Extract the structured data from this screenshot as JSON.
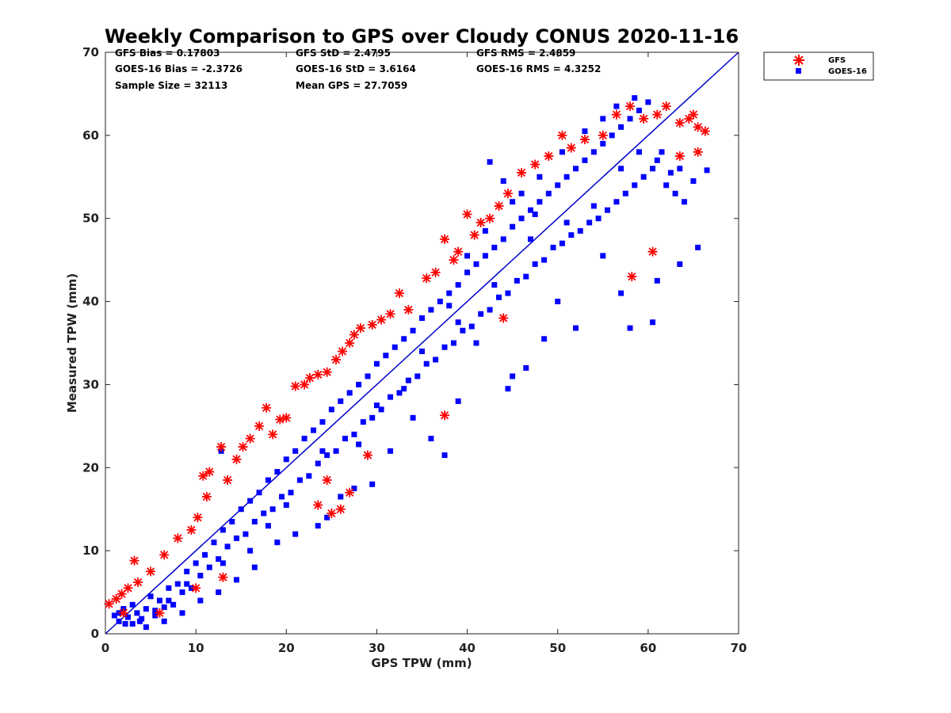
{
  "chart_data": {
    "type": "scatter",
    "title": "Weekly Comparison to GPS over Cloudy CONUS 2020-11-16",
    "xlabel": "GPS TPW (mm)",
    "ylabel": "Measured TPW (mm)",
    "xlim": [
      0,
      70
    ],
    "ylim": [
      0,
      70
    ],
    "xticks": [
      0,
      10,
      20,
      30,
      40,
      50,
      60,
      70
    ],
    "yticks": [
      0,
      10,
      20,
      30,
      40,
      50,
      60,
      70
    ],
    "grid": false,
    "legend_position": "outside-top-right",
    "reference_line": {
      "from": [
        0,
        0
      ],
      "to": [
        70,
        70
      ],
      "color": "#0000cc"
    },
    "stats": [
      [
        "GFS Bias = 0.17803",
        "GFS StD = 2.4795",
        "GFS RMS = 2.4859"
      ],
      [
        "GOES-16 Bias = -2.3726",
        "GOES-16 StD = 3.6164",
        "GOES-16 RMS = 4.3252"
      ],
      [
        "Sample Size = 32113",
        "Mean GPS = 27.7059"
      ]
    ],
    "series": [
      {
        "name": "GFS",
        "marker": "asterisk",
        "color": "#ff0000",
        "points": [
          [
            0.4,
            3.6
          ],
          [
            1.2,
            4.2
          ],
          [
            1.8,
            4.8
          ],
          [
            2.5,
            5.5
          ],
          [
            3.2,
            8.8
          ],
          [
            3.6,
            6.2
          ],
          [
            5,
            7.5
          ],
          [
            6.5,
            9.5
          ],
          [
            8,
            11.5
          ],
          [
            9.5,
            12.5
          ],
          [
            10.2,
            14
          ],
          [
            10.8,
            19
          ],
          [
            11.2,
            16.5
          ],
          [
            11.5,
            19.5
          ],
          [
            12.8,
            22.5
          ],
          [
            13.5,
            18.5
          ],
          [
            14.5,
            21
          ],
          [
            15.2,
            22.5
          ],
          [
            16,
            23.5
          ],
          [
            17,
            25
          ],
          [
            17.8,
            27.2
          ],
          [
            18.5,
            24
          ],
          [
            19.3,
            25.8
          ],
          [
            20,
            26
          ],
          [
            21,
            29.8
          ],
          [
            22,
            30
          ],
          [
            22.6,
            30.8
          ],
          [
            23.5,
            31.2
          ],
          [
            24.5,
            31.5
          ],
          [
            25.5,
            33
          ],
          [
            26.2,
            34
          ],
          [
            27,
            35
          ],
          [
            27.5,
            36
          ],
          [
            28.2,
            36.8
          ],
          [
            29.5,
            37.2
          ],
          [
            30.5,
            37.8
          ],
          [
            31.5,
            38.5
          ],
          [
            32.5,
            41
          ],
          [
            33.5,
            39
          ],
          [
            35.5,
            42.8
          ],
          [
            36.5,
            43.5
          ],
          [
            37.5,
            47.5
          ],
          [
            38.5,
            45
          ],
          [
            39,
            46
          ],
          [
            40,
            50.5
          ],
          [
            40.8,
            48
          ],
          [
            41.5,
            49.5
          ],
          [
            42.5,
            50
          ],
          [
            43.5,
            51.5
          ],
          [
            44.5,
            53
          ],
          [
            46,
            55.5
          ],
          [
            47.5,
            56.5
          ],
          [
            49,
            57.5
          ],
          [
            50.5,
            60
          ],
          [
            51.5,
            58.5
          ],
          [
            53,
            59.5
          ],
          [
            55,
            60
          ],
          [
            56.5,
            62.5
          ],
          [
            58,
            63.5
          ],
          [
            59.5,
            62
          ],
          [
            61,
            62.5
          ],
          [
            62,
            63.5
          ],
          [
            63.5,
            61.5
          ],
          [
            64.5,
            62
          ],
          [
            65,
            62.5
          ],
          [
            65.5,
            61
          ],
          [
            66.3,
            60.5
          ],
          [
            63.5,
            57.5
          ],
          [
            65.5,
            58
          ],
          [
            60.5,
            46
          ],
          [
            58.2,
            43
          ],
          [
            37.5,
            26.3
          ],
          [
            26,
            15
          ],
          [
            25,
            14.5
          ],
          [
            23.5,
            15.5
          ],
          [
            24.5,
            18.5
          ],
          [
            27,
            17
          ],
          [
            29,
            21.5
          ],
          [
            44,
            38
          ],
          [
            13,
            6.8
          ],
          [
            10,
            5.5
          ],
          [
            6,
            2.5
          ],
          [
            2,
            2.5
          ]
        ]
      },
      {
        "name": "GOES-16",
        "marker": "square",
        "color": "#0000ff",
        "points": [
          [
            1,
            2.2
          ],
          [
            1.5,
            1.5
          ],
          [
            2,
            3
          ],
          [
            2.5,
            2
          ],
          [
            3,
            1.2
          ],
          [
            3,
            3.5
          ],
          [
            3.5,
            2.5
          ],
          [
            4,
            1.8
          ],
          [
            4.5,
            3
          ],
          [
            5,
            4.5
          ],
          [
            5.5,
            2.2
          ],
          [
            6,
            4
          ],
          [
            6.5,
            3.2
          ],
          [
            7,
            5.5
          ],
          [
            7.5,
            3.5
          ],
          [
            8,
            6
          ],
          [
            8.5,
            5
          ],
          [
            9,
            7.5
          ],
          [
            9.5,
            5.5
          ],
          [
            10,
            8.5
          ],
          [
            10.5,
            7
          ],
          [
            11,
            9.5
          ],
          [
            11.5,
            8
          ],
          [
            12,
            11
          ],
          [
            12.5,
            9
          ],
          [
            13,
            12.5
          ],
          [
            13.5,
            10.5
          ],
          [
            14,
            13.5
          ],
          [
            14.5,
            11.5
          ],
          [
            15,
            15
          ],
          [
            15.5,
            12
          ],
          [
            16,
            16
          ],
          [
            16.5,
            13.5
          ],
          [
            17,
            17
          ],
          [
            17.5,
            14.5
          ],
          [
            18,
            18.5
          ],
          [
            18.5,
            15
          ],
          [
            19,
            19.5
          ],
          [
            19.5,
            16.5
          ],
          [
            20,
            21
          ],
          [
            20.5,
            17
          ],
          [
            21,
            22
          ],
          [
            21.5,
            18.5
          ],
          [
            22,
            23.5
          ],
          [
            22.5,
            19
          ],
          [
            23,
            24.5
          ],
          [
            23.5,
            20.5
          ],
          [
            24,
            25.5
          ],
          [
            24.5,
            21.5
          ],
          [
            25,
            27
          ],
          [
            25.5,
            22
          ],
          [
            26,
            28
          ],
          [
            26.5,
            23.5
          ],
          [
            27,
            29
          ],
          [
            27.5,
            24
          ],
          [
            28,
            30
          ],
          [
            28.5,
            25.5
          ],
          [
            29,
            31
          ],
          [
            29.5,
            26
          ],
          [
            30,
            32.5
          ],
          [
            30.5,
            27
          ],
          [
            31,
            33.5
          ],
          [
            31.5,
            28.5
          ],
          [
            32,
            34.5
          ],
          [
            32.5,
            29
          ],
          [
            33,
            35.5
          ],
          [
            33.5,
            30.5
          ],
          [
            34,
            36.5
          ],
          [
            34.5,
            31
          ],
          [
            35,
            38
          ],
          [
            35.5,
            32.5
          ],
          [
            36,
            39
          ],
          [
            36.5,
            33
          ],
          [
            37,
            40
          ],
          [
            37.5,
            34.5
          ],
          [
            38,
            41
          ],
          [
            38.5,
            35
          ],
          [
            39,
            42
          ],
          [
            39.5,
            36.5
          ],
          [
            40,
            43.5
          ],
          [
            40.5,
            37
          ],
          [
            41,
            44.5
          ],
          [
            41.5,
            38.5
          ],
          [
            42,
            45.5
          ],
          [
            42.5,
            39
          ],
          [
            43,
            46.5
          ],
          [
            43.5,
            40.5
          ],
          [
            44,
            47.5
          ],
          [
            44.5,
            41
          ],
          [
            45,
            49
          ],
          [
            45.5,
            42.5
          ],
          [
            46,
            50
          ],
          [
            46.5,
            43
          ],
          [
            47,
            51
          ],
          [
            47.5,
            44.5
          ],
          [
            48,
            52
          ],
          [
            48.5,
            45
          ],
          [
            49,
            53
          ],
          [
            49.5,
            46.5
          ],
          [
            50,
            54
          ],
          [
            50.5,
            47
          ],
          [
            51,
            55
          ],
          [
            51.5,
            48
          ],
          [
            52,
            56
          ],
          [
            52.5,
            48.5
          ],
          [
            53,
            57
          ],
          [
            53.5,
            49.5
          ],
          [
            54,
            58
          ],
          [
            54.5,
            50
          ],
          [
            55,
            59
          ],
          [
            55.5,
            51
          ],
          [
            56,
            60
          ],
          [
            56.5,
            52
          ],
          [
            57,
            61
          ],
          [
            57.5,
            53
          ],
          [
            58,
            62
          ],
          [
            58.5,
            54
          ],
          [
            59,
            63
          ],
          [
            59.5,
            55
          ],
          [
            60,
            64
          ],
          [
            60.5,
            56
          ],
          [
            61,
            57
          ],
          [
            61.5,
            58
          ],
          [
            62,
            54
          ],
          [
            62.5,
            55.5
          ],
          [
            63,
            53
          ],
          [
            63.5,
            56
          ],
          [
            64,
            52
          ],
          [
            65,
            54.5
          ],
          [
            66.5,
            55.8
          ],
          [
            65.5,
            46.5
          ],
          [
            63.5,
            44.5
          ],
          [
            61,
            42.5
          ],
          [
            60.5,
            37.5
          ],
          [
            58,
            36.8
          ],
          [
            57,
            41
          ],
          [
            55,
            45.5
          ],
          [
            52,
            36.8
          ],
          [
            50,
            40
          ],
          [
            48.5,
            35.5
          ],
          [
            46.5,
            32
          ],
          [
            45,
            31
          ],
          [
            44.5,
            29.5
          ],
          [
            41,
            35
          ],
          [
            39,
            28
          ],
          [
            37.5,
            21.5
          ],
          [
            36,
            23.5
          ],
          [
            34,
            26
          ],
          [
            31.5,
            22
          ],
          [
            29.5,
            18
          ],
          [
            27.5,
            17.5
          ],
          [
            26,
            16.5
          ],
          [
            24.5,
            14
          ],
          [
            23.5,
            13
          ],
          [
            21,
            12
          ],
          [
            19,
            11
          ],
          [
            16.5,
            8
          ],
          [
            14.5,
            6.5
          ],
          [
            12.5,
            5
          ],
          [
            10.5,
            4
          ],
          [
            8.5,
            2.5
          ],
          [
            6.5,
            1.5
          ],
          [
            4.5,
            0.8
          ],
          [
            42.5,
            56.8
          ],
          [
            44,
            54.5
          ],
          [
            46,
            53
          ],
          [
            47.5,
            50.5
          ],
          [
            38,
            39.5
          ],
          [
            35,
            34
          ],
          [
            30,
            27.5
          ],
          [
            28,
            22.8
          ],
          [
            24,
            22
          ],
          [
            20,
            15.5
          ],
          [
            18,
            13
          ],
          [
            16,
            10
          ],
          [
            13,
            8.5
          ],
          [
            12.8,
            22
          ],
          [
            9,
            6
          ],
          [
            7,
            4
          ],
          [
            5.5,
            2.8
          ],
          [
            3.8,
            1.5
          ],
          [
            2.2,
            1.2
          ],
          [
            1.5,
            2.5
          ],
          [
            33,
            29.5
          ],
          [
            39,
            37.5
          ],
          [
            43,
            42
          ],
          [
            47,
            47.5
          ],
          [
            51,
            49.5
          ],
          [
            54,
            51.5
          ],
          [
            57,
            56
          ],
          [
            59,
            58
          ],
          [
            58.5,
            64.5
          ],
          [
            56.5,
            63.5
          ],
          [
            55,
            62
          ],
          [
            53,
            60.5
          ],
          [
            50.5,
            58
          ],
          [
            48,
            55
          ],
          [
            45,
            52
          ],
          [
            42,
            48.5
          ],
          [
            40,
            45.5
          ]
        ]
      }
    ]
  }
}
